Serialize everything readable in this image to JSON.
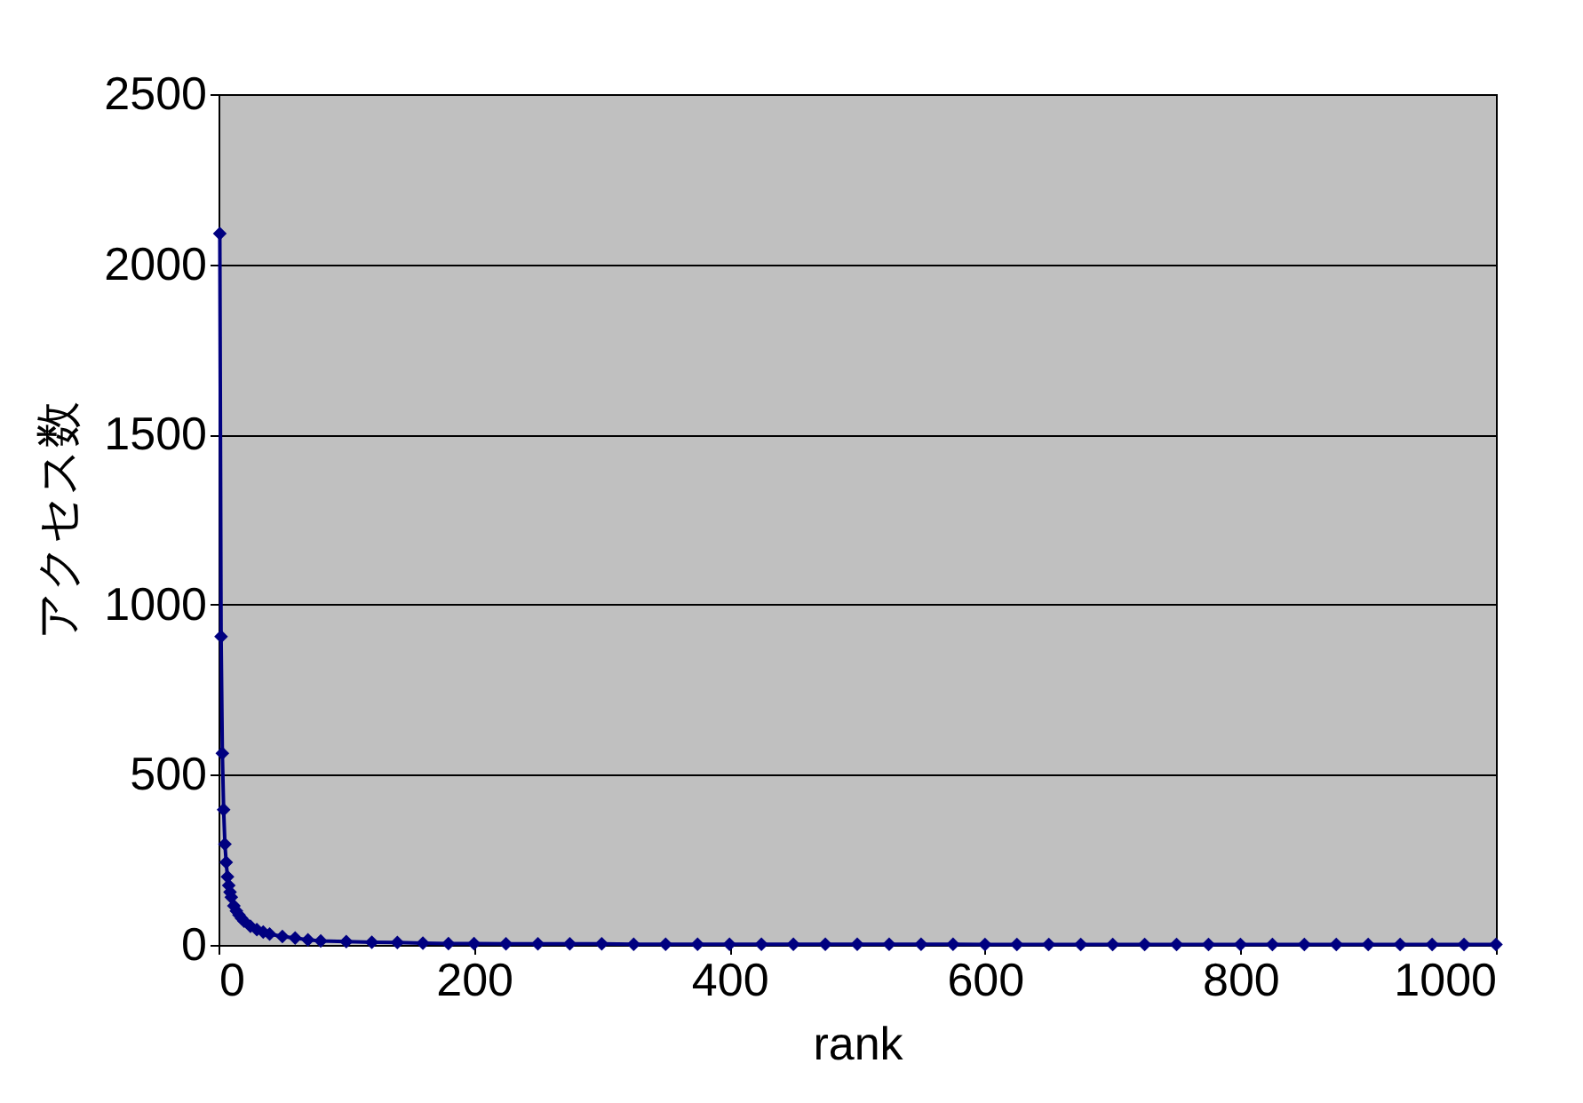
{
  "chart_data": {
    "type": "line",
    "xlabel": "rank",
    "ylabel": "アクセス数",
    "x": [
      1,
      2,
      3,
      4,
      5,
      6,
      7,
      8,
      9,
      10,
      12,
      14,
      16,
      18,
      20,
      25,
      30,
      35,
      40,
      50,
      60,
      70,
      80,
      100,
      120,
      140,
      160,
      180,
      200,
      225,
      250,
      275,
      300,
      325,
      350,
      375,
      400,
      425,
      450,
      475,
      500,
      525,
      550,
      575,
      600,
      625,
      650,
      675,
      700,
      725,
      750,
      775,
      800,
      825,
      850,
      875,
      900,
      925,
      950,
      975,
      1000
    ],
    "series": [
      {
        "color": "#000080",
        "values": [
          2090,
          906,
          563,
          397,
          296,
          243,
          200,
          175,
          155,
          140,
          115,
          100,
          88,
          78,
          70,
          55,
          45,
          38,
          32,
          25,
          20,
          15,
          12,
          10,
          8,
          7,
          5,
          4,
          4,
          3,
          3,
          3,
          3,
          2,
          2,
          2,
          2,
          2,
          2,
          2,
          2,
          2,
          2,
          2,
          1,
          1,
          1,
          1,
          1,
          1,
          1,
          1,
          1,
          1,
          1,
          1,
          1,
          1,
          1,
          1,
          1
        ]
      }
    ],
    "xlim": [
      0,
      1000
    ],
    "xticks": [
      0,
      200,
      400,
      600,
      800,
      1000
    ],
    "ylim": [
      0,
      2500
    ],
    "yticks": [
      0,
      500,
      1000,
      1500,
      2000,
      2500
    ],
    "grid": "y",
    "marker": "diamond",
    "line_style": "solid"
  }
}
